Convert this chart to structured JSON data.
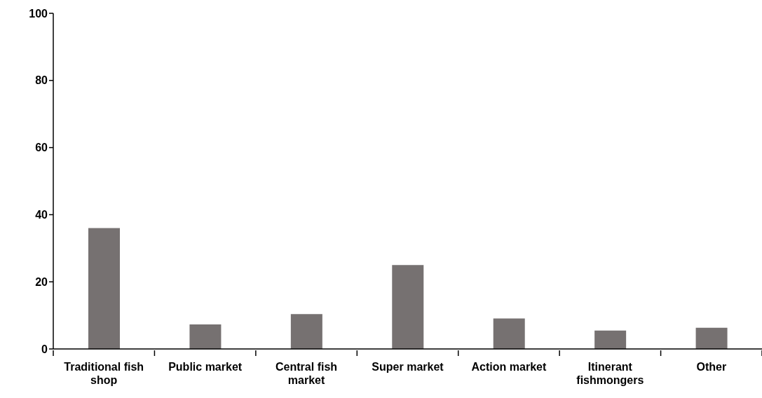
{
  "chart_data": {
    "type": "bar",
    "categories": [
      "Traditional fish shop",
      "Public market",
      "Central fish market",
      "Super market",
      "Action market",
      "Itinerant fishmongers",
      "Other"
    ],
    "values": [
      36,
      7.3,
      10.4,
      25,
      9.1,
      5.5,
      6.3
    ],
    "color": "#767171",
    "ylim": [
      0,
      100
    ],
    "yticks": [
      0,
      20,
      40,
      60,
      80,
      100
    ]
  }
}
